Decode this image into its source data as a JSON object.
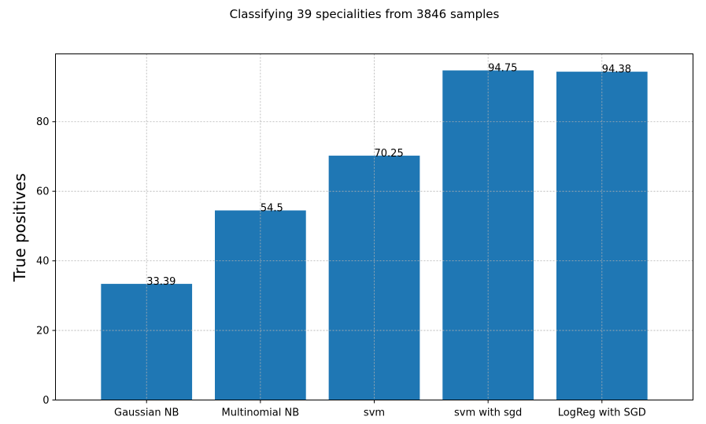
{
  "chart_data": {
    "type": "bar",
    "title": "Classifying 39 specialities from 3846 samples",
    "xlabel": "",
    "ylabel": "True positives",
    "categories": [
      "Gaussian NB",
      "Multinomial NB",
      "svm",
      "svm with sgd",
      "LogReg with SGD"
    ],
    "values": [
      33.39,
      54.5,
      70.25,
      94.75,
      94.38
    ],
    "value_labels": [
      "33.39",
      "54.5",
      "70.25",
      "94.75",
      "94.38"
    ],
    "ylim": [
      0,
      99.5
    ],
    "yticks": [
      0,
      20,
      40,
      60,
      80
    ],
    "ytick_labels": [
      "0",
      "20",
      "40",
      "60",
      "80"
    ],
    "grid": true,
    "bar_color": "#1f77b4"
  }
}
